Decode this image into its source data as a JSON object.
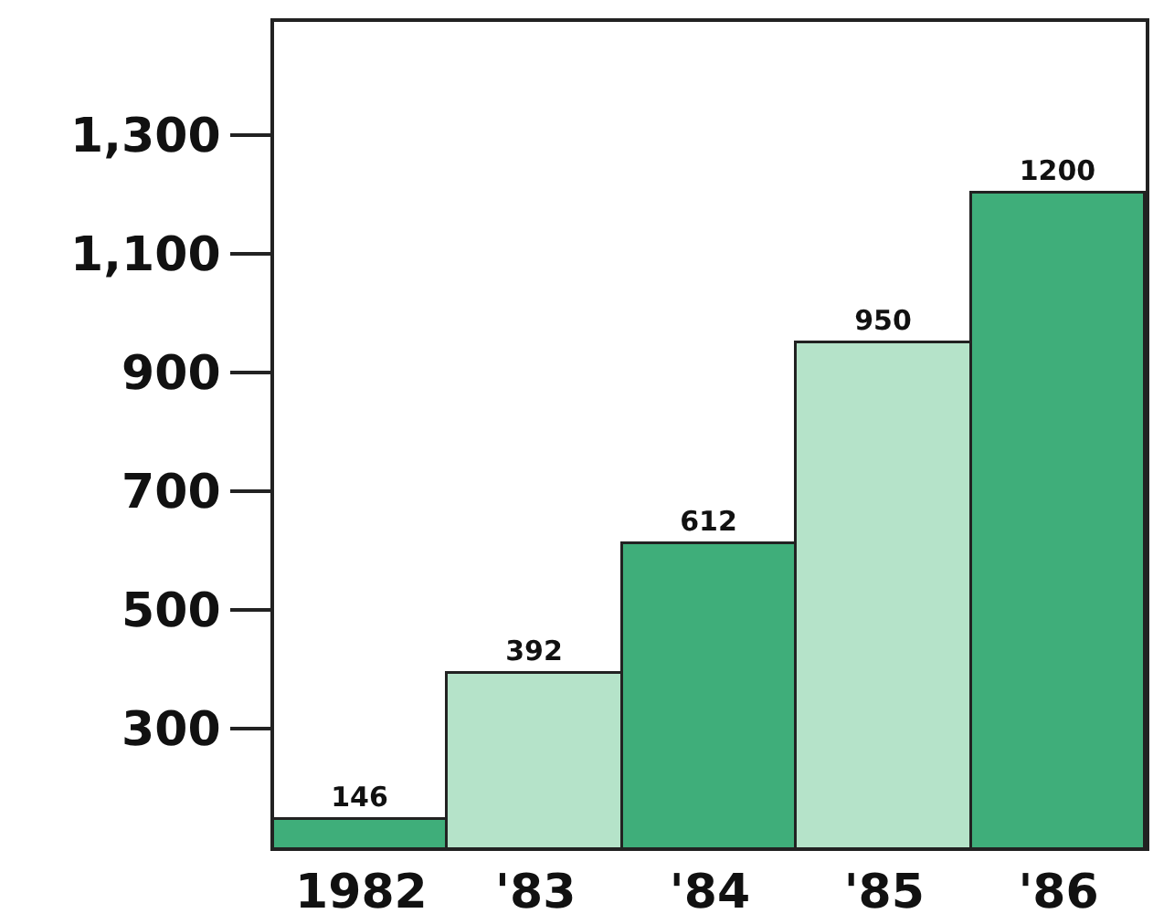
{
  "chart_data": {
    "type": "bar",
    "categories": [
      "1982",
      "'83",
      "'84",
      "'85",
      "'86"
    ],
    "values": [
      146,
      392,
      612,
      950,
      1200
    ],
    "colors": [
      "#3fae7a",
      "#b5e3c9",
      "#3fae7a",
      "#b5e3c9",
      "#3fae7a"
    ],
    "ylim": [
      100,
      1490
    ],
    "yticks": [
      {
        "value": 300,
        "label": "300"
      },
      {
        "value": 500,
        "label": "500"
      },
      {
        "value": 700,
        "label": "700"
      },
      {
        "value": 900,
        "label": "900"
      },
      {
        "value": 1100,
        "label": "1,100"
      },
      {
        "value": 1300,
        "label": "1,300"
      }
    ],
    "data_labels": true
  }
}
